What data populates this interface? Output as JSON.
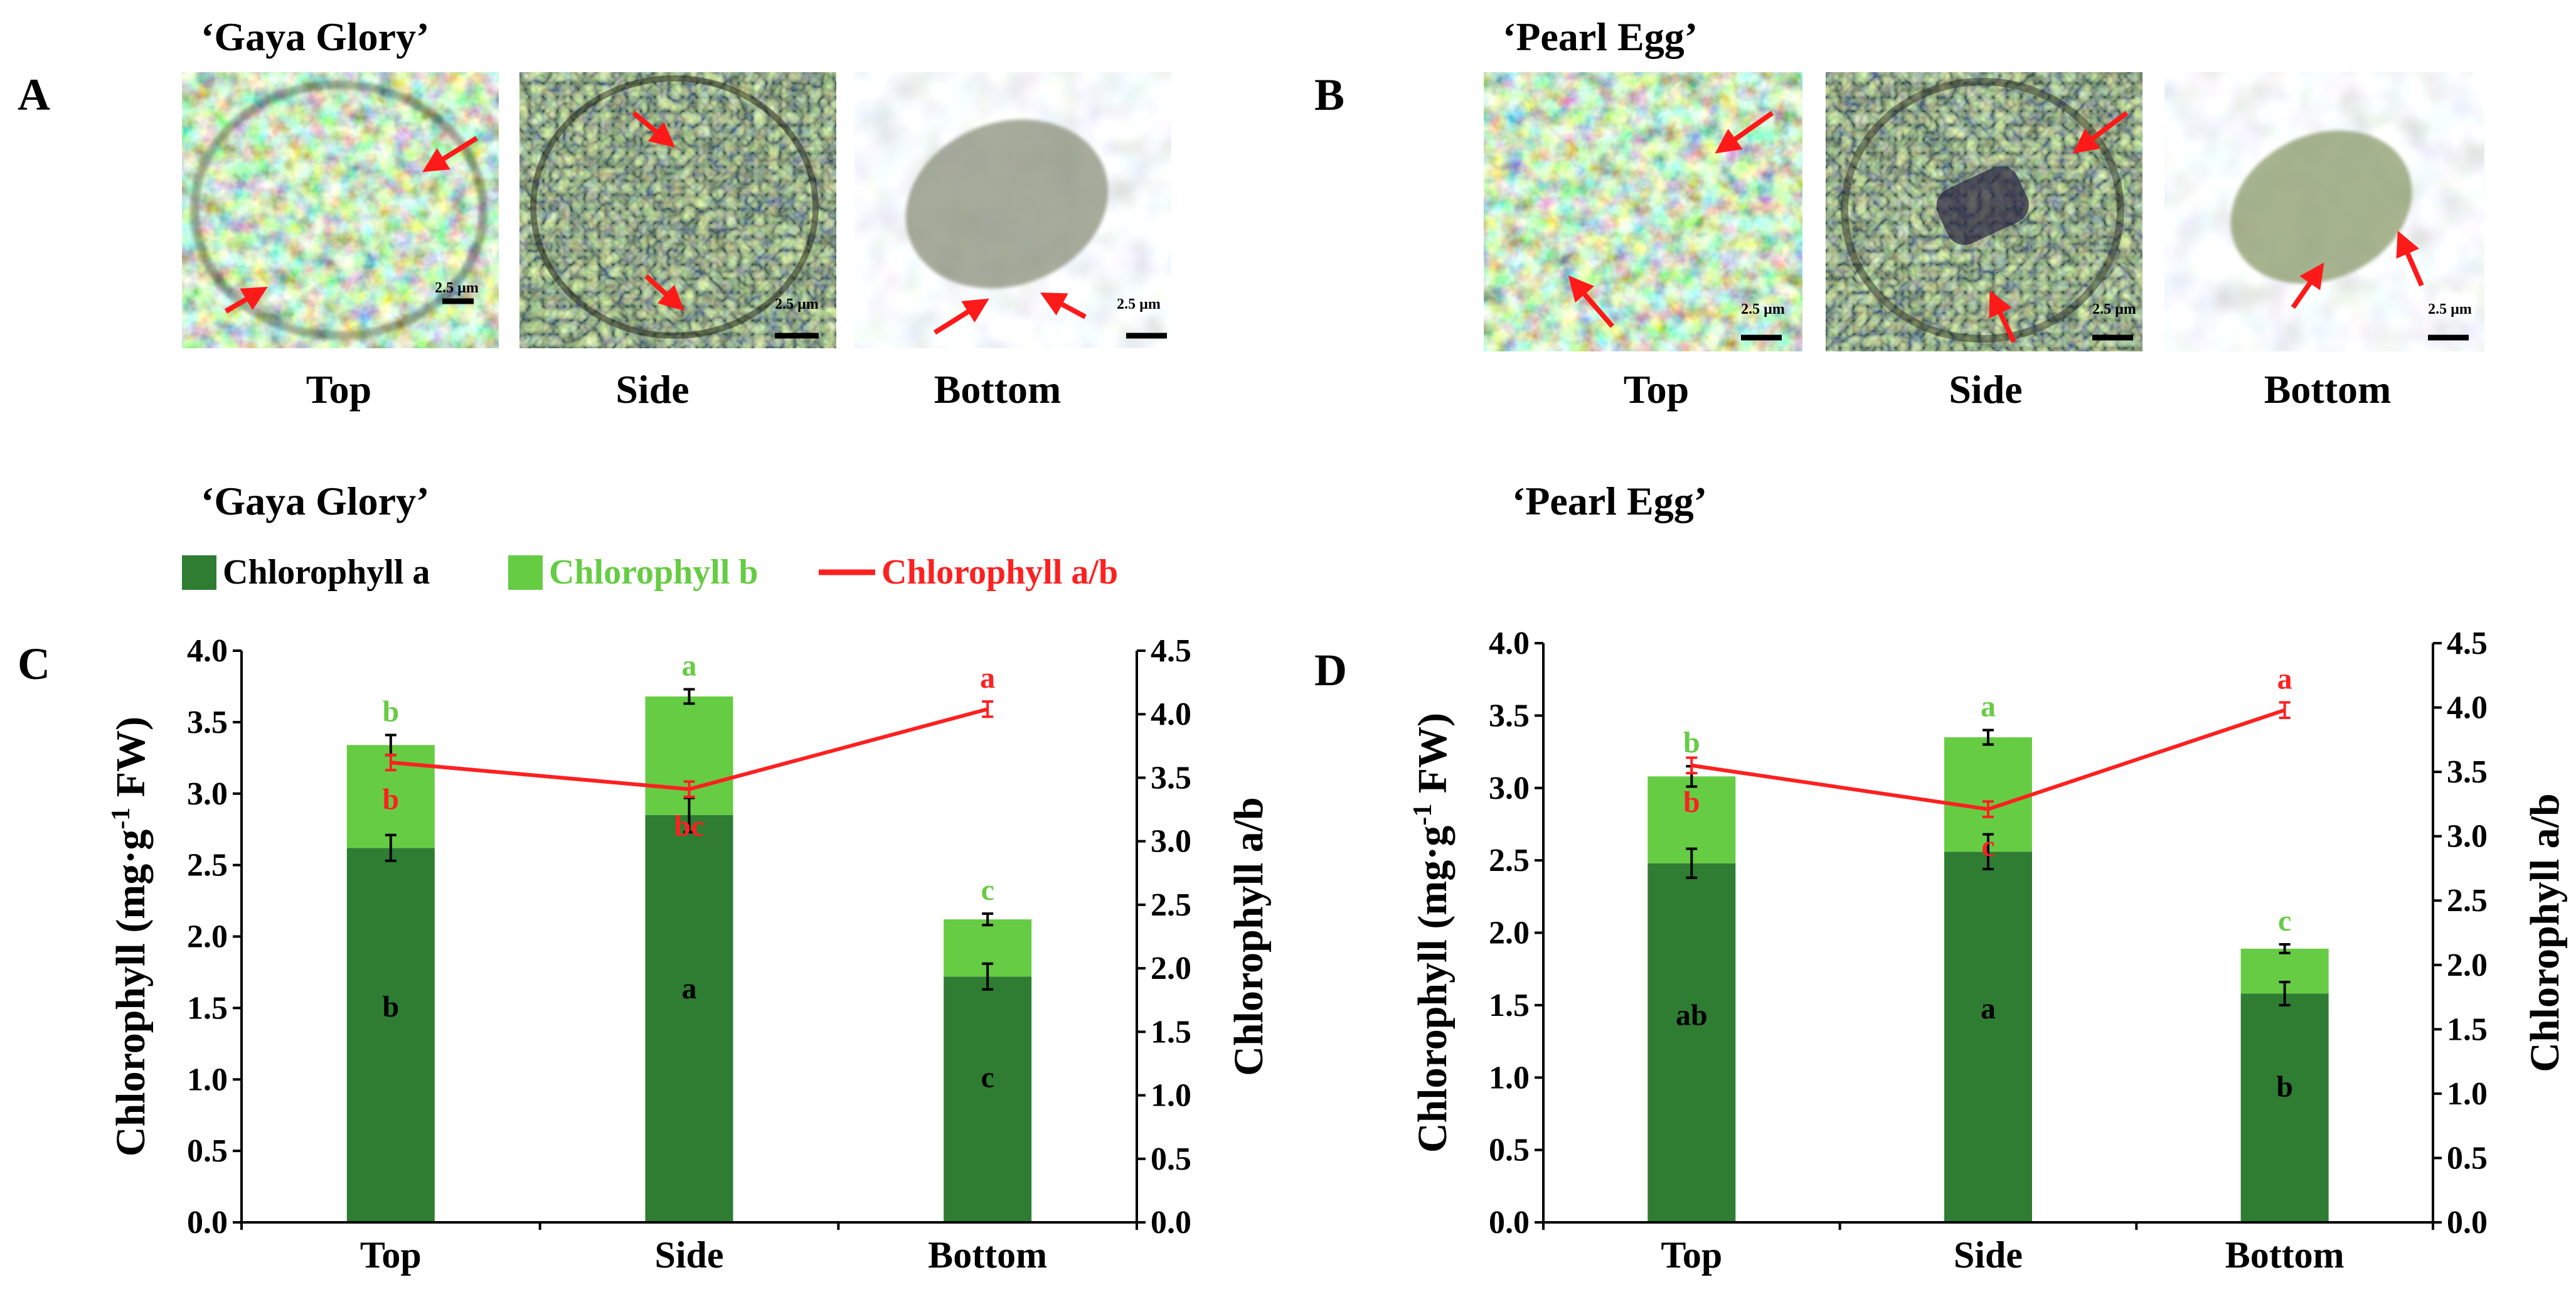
{
  "colors": {
    "chl_a": "#2e7d32",
    "chl_b": "#66cc44",
    "ratio": "#ff2020",
    "arrow": "#ff1a1a",
    "text": "#000000"
  },
  "panels": [
    {
      "letter": "A",
      "title": "‘Gaya Glory’",
      "photos": [
        {
          "label": "Top",
          "scale_bar": "2.5 µm"
        },
        {
          "label": "Side",
          "scale_bar": "2.5 µm"
        },
        {
          "label": "Bottom",
          "scale_bar": "2.5 µm"
        }
      ]
    },
    {
      "letter": "B",
      "title": "‘Pearl Egg’",
      "photos": [
        {
          "label": "Top",
          "scale_bar": "2.5 µm"
        },
        {
          "label": "Side",
          "scale_bar": "2.5 µm"
        },
        {
          "label": "Bottom",
          "scale_bar": "2.5 µm"
        }
      ]
    }
  ],
  "legend": [
    {
      "label": "Chlorophyll a",
      "kind": "bar",
      "color_key": "chl_a"
    },
    {
      "label": "Chlorophyll b",
      "kind": "bar",
      "color_key": "chl_b"
    },
    {
      "label": "Chlorophyll a/b",
      "kind": "line",
      "color_key": "ratio"
    }
  ],
  "chart_data": [
    {
      "panel": "C",
      "title": "‘Gaya Glory’",
      "type": "bar",
      "stacked": true,
      "categories": [
        "Top",
        "Side",
        "Bottom"
      ],
      "ylabel": "Chlorophyll (mg·g-1 FW)",
      "y2label": "Chlorophyll a/b",
      "ylim": [
        0,
        4.0
      ],
      "y2lim": [
        0,
        4.5
      ],
      "yticks": [
        "0.0",
        "0.5",
        "1.0",
        "1.5",
        "2.0",
        "2.5",
        "3.0",
        "3.5",
        "4.0"
      ],
      "y2ticks": [
        "0.0",
        "0.5",
        "1.0",
        "1.5",
        "2.0",
        "2.5",
        "3.0",
        "3.5",
        "4.0",
        "4.5"
      ],
      "series": [
        {
          "name": "Chlorophyll a",
          "values": [
            2.62,
            2.85,
            1.72
          ],
          "errors": [
            0.09,
            0.12,
            0.09
          ],
          "letters": [
            "b",
            "a",
            "c"
          ]
        },
        {
          "name": "Chlorophyll b",
          "values": [
            0.72,
            0.83,
            0.4
          ],
          "errors": [
            0.07,
            0.05,
            0.04
          ],
          "letters": [
            "b",
            "a",
            "c"
          ]
        },
        {
          "name": "Chlorophyll a/b",
          "axis": "right",
          "values": [
            3.62,
            3.41,
            4.04
          ],
          "errors": [
            0.06,
            0.06,
            0.06
          ],
          "letters": [
            "b",
            "bc",
            "a"
          ]
        }
      ]
    },
    {
      "panel": "D",
      "title": "‘Pearl Egg’",
      "type": "bar",
      "stacked": true,
      "categories": [
        "Top",
        "Side",
        "Bottom"
      ],
      "ylabel": "Chlorophyll (mg·g-1 FW)",
      "y2label": "Chlorophyll a/b",
      "ylim": [
        0,
        4.0
      ],
      "y2lim": [
        0,
        4.5
      ],
      "yticks": [
        "0.0",
        "0.5",
        "1.0",
        "1.5",
        "2.0",
        "2.5",
        "3.0",
        "3.5",
        "4.0"
      ],
      "y2ticks": [
        "0.0",
        "0.5",
        "1.0",
        "1.5",
        "2.0",
        "2.5",
        "3.0",
        "3.5",
        "4.0",
        "4.5"
      ],
      "series": [
        {
          "name": "Chlorophyll a",
          "values": [
            2.48,
            2.56,
            1.58
          ],
          "errors": [
            0.1,
            0.12,
            0.08
          ],
          "letters": [
            "ab",
            "a",
            "b"
          ]
        },
        {
          "name": "Chlorophyll b",
          "values": [
            0.6,
            0.79,
            0.31
          ],
          "errors": [
            0.07,
            0.05,
            0.03
          ],
          "letters": [
            "b",
            "a",
            "c"
          ]
        },
        {
          "name": "Chlorophyll a/b",
          "axis": "right",
          "values": [
            3.55,
            3.21,
            3.98
          ],
          "errors": [
            0.06,
            0.06,
            0.06
          ],
          "letters": [
            "b",
            "c",
            "a"
          ]
        }
      ]
    }
  ]
}
